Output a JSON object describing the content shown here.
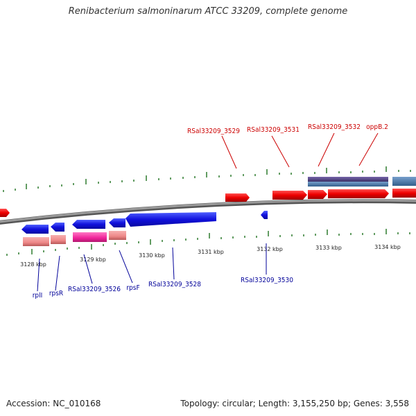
{
  "title": "Renibacterium salmoninarum ATCC 33209, complete genome",
  "footer": {
    "accession": "Accession: NC_010168",
    "stats": "Topology: circular; Length: 3,155,250 bp; Genes: 3,558"
  },
  "colors": {
    "forward_gene": "#ee0000",
    "reverse_gene": "#1111dd",
    "forward_label": "#cc0000",
    "reverse_label": "#000099",
    "backbone": "#808080",
    "ticks": "#2d7a2d",
    "pink_feature": "#ee3399",
    "salmon_feature": "#ee8888",
    "purple_feature": "#554488",
    "steel_feature": "#4477aa"
  },
  "scale_labels": [
    "3128 kbp",
    "3129 kbp",
    "3130 kbp",
    "3131 kbp",
    "3132 kbp",
    "3133 kbp",
    "3134 kbp"
  ],
  "forward_labels": [
    "RSal33209_3529",
    "RSal33209_3531",
    "RSal33209_3532",
    "oppB.2"
  ],
  "reverse_labels": [
    "rplI",
    "rpsR",
    "RSal33209_3526",
    "rpsF",
    "RSal33209_3528",
    "RSal33209_3530"
  ]
}
